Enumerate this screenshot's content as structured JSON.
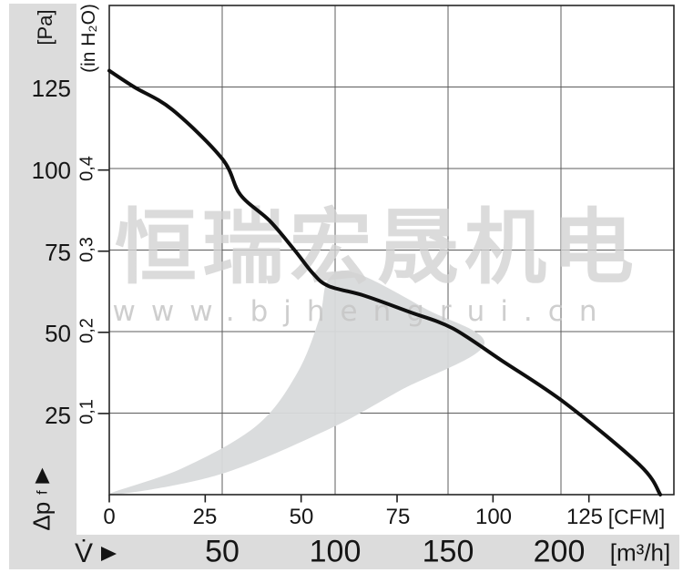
{
  "watermark": {
    "company": "恒瑞宏晟机电",
    "website": "www.bjhengrui.cn"
  },
  "colors": {
    "curve": "#0f0f0f",
    "operating_range": "#d8dadb",
    "strip": "#dcdcdc",
    "grid": "#5c5c5c",
    "watermark_cjk": "#d2d2d2",
    "watermark_url": "#c6c6c6"
  },
  "y_axis_pa": {
    "unit": "[Pa]",
    "ticks": [
      "125",
      "100",
      "75",
      "50",
      "25"
    ]
  },
  "y_axis_inh2o": {
    "unit": "(in H₂O)",
    "ticks": [
      "0,4",
      "0,3",
      "0,2",
      "0,1"
    ]
  },
  "x_axis_cfm": {
    "unit": "[CFM]",
    "ticks": [
      "0",
      "25",
      "50",
      "75",
      "100",
      "125"
    ]
  },
  "x_axis_m3h": {
    "unit": "[m³/h]",
    "symbol": "V̇",
    "ticks": [
      "50",
      "100",
      "150",
      "200"
    ]
  },
  "dp_label": {
    "main": "Δp",
    "sub": "f"
  },
  "chart_data": {
    "type": "line",
    "x_unit_primary": "m³/h",
    "x_unit_secondary": "CFM",
    "y_unit_primary": "Pa",
    "y_unit_secondary": "in H₂O",
    "x_range_m3h": [
      0,
      250
    ],
    "y_range_pa": [
      0,
      150
    ],
    "grid": true,
    "legend": "none",
    "x_gridlines_m3h": [
      50,
      100,
      150,
      200
    ],
    "y_gridlines_pa": [
      25,
      50,
      75,
      100,
      125,
      150
    ],
    "cfm_tick_values": [
      0,
      25,
      50,
      75,
      100,
      125
    ],
    "inh2o_tick_values": [
      0.1,
      0.2,
      0.3,
      0.4
    ],
    "curve_pa_vs_m3h": [
      [
        0,
        130
      ],
      [
        11,
        125
      ],
      [
        28,
        118
      ],
      [
        50,
        103
      ],
      [
        58,
        92
      ],
      [
        71,
        84
      ],
      [
        82,
        75
      ],
      [
        90,
        68
      ],
      [
        97,
        64
      ],
      [
        113,
        61
      ],
      [
        133,
        56
      ],
      [
        152,
        51
      ],
      [
        174,
        41
      ],
      [
        202,
        28
      ],
      [
        235,
        9
      ],
      [
        244,
        0
      ]
    ],
    "operating_range": {
      "upper_boundary_m3h_pa": [
        [
          0,
          0
        ],
        [
          32,
          8
        ],
        [
          65,
          21
        ],
        [
          83,
          37
        ],
        [
          93,
          54
        ],
        [
          97,
          66
        ],
        [
          109,
          68
        ],
        [
          140,
          57
        ],
        [
          166,
          46
        ]
      ],
      "lower_boundary_m3h_pa": [
        [
          0,
          0
        ],
        [
          48,
          6
        ],
        [
          97,
          20
        ],
        [
          129,
          32
        ],
        [
          166,
          46
        ]
      ]
    }
  }
}
